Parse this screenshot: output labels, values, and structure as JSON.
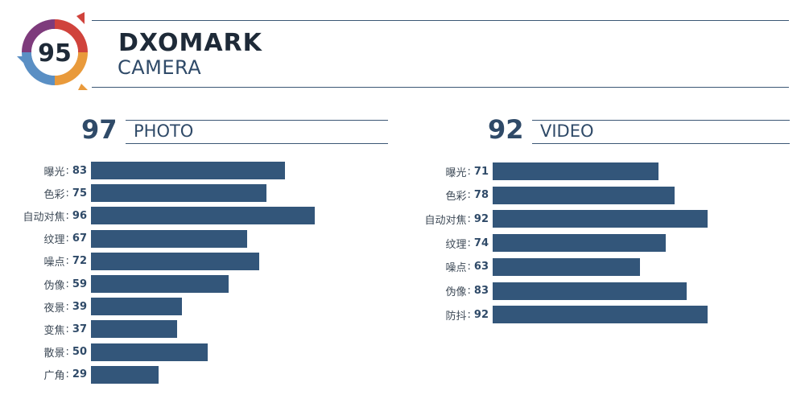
{
  "brand": {
    "name": "DXOMARK",
    "sub": "CAMERA",
    "score": "95"
  },
  "colors": {
    "bar": "#33567a",
    "text": "#2f4a68",
    "badge_purple": "#7e3b7c",
    "badge_red": "#d0433c",
    "badge_orange": "#e99a3b",
    "badge_blue": "#5a8fc4"
  },
  "chart_data": [
    {
      "type": "bar",
      "orientation": "horizontal",
      "title": "PHOTO",
      "score": "97",
      "categories": [
        "曝光",
        "色彩",
        "自动对焦",
        "纹理",
        "噪点",
        "伪像",
        "夜景",
        "变焦",
        "散景",
        "广角"
      ],
      "values": [
        83,
        75,
        96,
        67,
        72,
        59,
        39,
        37,
        50,
        29
      ],
      "xlim": [
        0,
        100
      ]
    },
    {
      "type": "bar",
      "orientation": "horizontal",
      "title": "VIDEO",
      "score": "92",
      "categories": [
        "曝光",
        "色彩",
        "自动对焦",
        "纹理",
        "噪点",
        "伪像",
        "防抖"
      ],
      "values": [
        71,
        78,
        92,
        74,
        63,
        83,
        92
      ],
      "xlim": [
        0,
        100
      ]
    }
  ]
}
